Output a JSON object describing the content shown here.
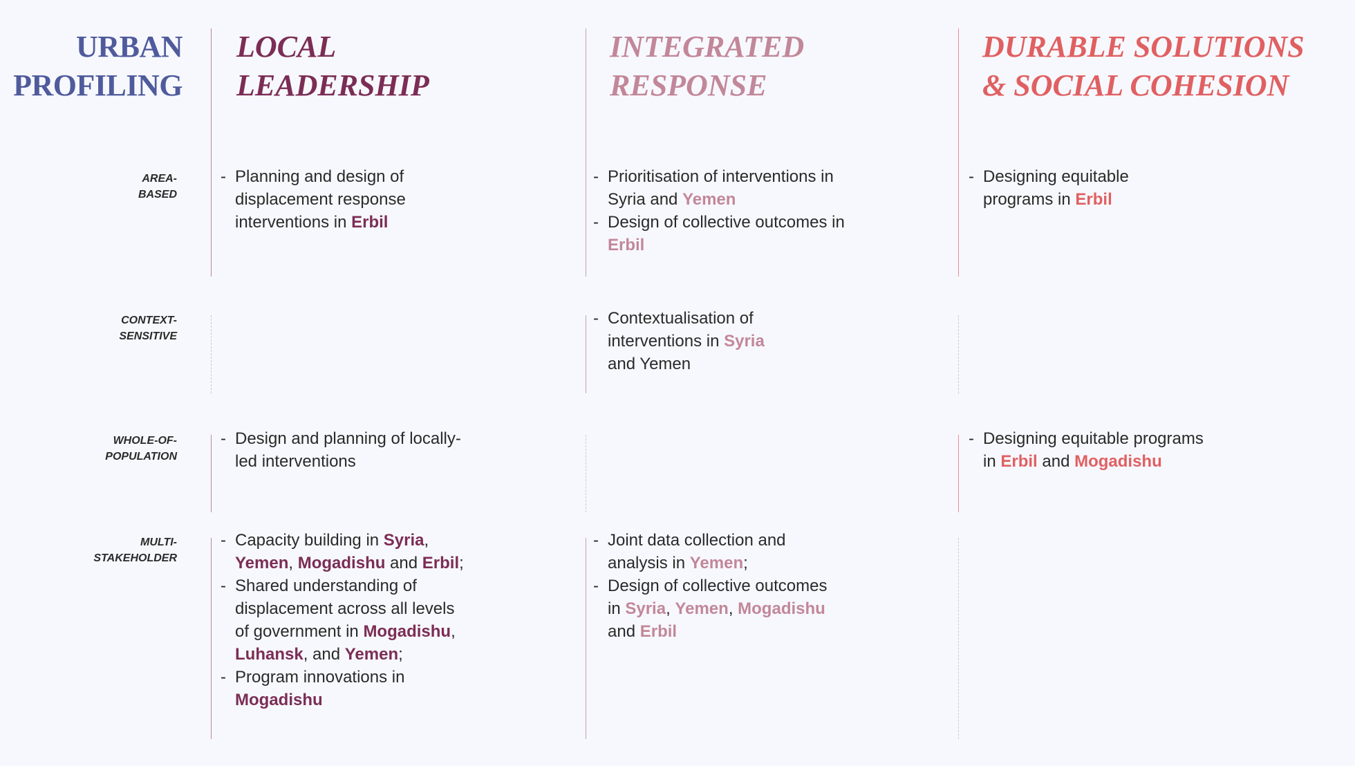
{
  "title": {
    "line1": "URBAN",
    "line2": "PROFILING",
    "color": "#4f5b9c"
  },
  "columns": [
    {
      "line1": "LOCAL",
      "line2": "LEADERSHIP",
      "color": "#7b2d55",
      "divider": "#b9859d"
    },
    {
      "line1": "INTEGRATED",
      "line2": "RESPONSE",
      "color": "#c28799",
      "divider": "#c9a0ad"
    },
    {
      "line1": "DURABLE SOLUTIONS",
      "line2": "& SOCIAL COHESION",
      "color": "#e06062",
      "divider": "#e88e90"
    }
  ],
  "rows": [
    {
      "label1": "AREA-",
      "label2": "BASED",
      "cells": [
        [
          [
            [
              {
                "t": "Planning and design of"
              }
            ],
            [
              {
                "t": "displacement response"
              }
            ],
            [
              {
                "t": "interventions in "
              },
              {
                "t": "Erbil",
                "h": 1
              }
            ]
          ]
        ],
        [
          [
            [
              {
                "t": "Prioritisation of interventions in"
              }
            ],
            [
              {
                "t": "Syria and "
              },
              {
                "t": "Yemen",
                "h": 1
              }
            ]
          ],
          [
            [
              {
                "t": "Design of collective outcomes in"
              }
            ],
            [
              {
                "t": "Erbil",
                "h": 1
              }
            ]
          ]
        ],
        [
          [
            [
              {
                "t": "Designing equitable"
              }
            ],
            [
              {
                "t": "programs in "
              },
              {
                "t": "Erbil",
                "h": 1
              }
            ]
          ]
        ]
      ]
    },
    {
      "label1": "CONTEXT-",
      "label2": "SENSITIVE",
      "cells": [
        [],
        [
          [
            [
              {
                "t": "Contextualisation of"
              }
            ],
            [
              {
                "t": "interventions in "
              },
              {
                "t": "Syria",
                "h": 1
              }
            ],
            [
              {
                "t": "and Yemen"
              }
            ]
          ]
        ],
        []
      ]
    },
    {
      "label1": "WHOLE-OF-",
      "label2": "POPULATION",
      "cells": [
        [
          [
            [
              {
                "t": "Design and planning of locally-"
              }
            ],
            [
              {
                "t": "led interventions"
              }
            ]
          ]
        ],
        [],
        [
          [
            [
              {
                "t": "Designing equitable programs"
              }
            ],
            [
              {
                "t": "in "
              },
              {
                "t": "Erbil",
                "h": 1
              },
              {
                "t": " and "
              },
              {
                "t": "Mogadishu",
                "h": 1
              }
            ]
          ]
        ]
      ]
    },
    {
      "label1": "MULTI-",
      "label2": "STAKEHOLDER",
      "cells": [
        [
          [
            [
              {
                "t": "Capacity building in "
              },
              {
                "t": "Syria",
                "h": 1
              },
              {
                "t": ","
              }
            ],
            [
              {
                "t": "Yemen",
                "h": 1
              },
              {
                "t": ", "
              },
              {
                "t": "Mogadishu",
                "h": 1
              },
              {
                "t": "  and "
              },
              {
                "t": "Erbil",
                "h": 1
              },
              {
                "t": ";"
              }
            ]
          ],
          [
            [
              {
                "t": "Shared understanding of"
              }
            ],
            [
              {
                "t": "displacement across all levels"
              }
            ],
            [
              {
                "t": "of government in "
              },
              {
                "t": "Mogadishu",
                "h": 1
              },
              {
                "t": ","
              }
            ],
            [
              {
                "t": "Luhansk",
                "h": 1
              },
              {
                "t": ", and "
              },
              {
                "t": "Yemen",
                "h": 1
              },
              {
                "t": ";"
              }
            ]
          ],
          [
            [
              {
                "t": "Program innovations in"
              }
            ],
            [
              {
                "t": "Mogadishu",
                "h": 1
              }
            ]
          ]
        ],
        [
          [
            [
              {
                "t": "Joint data collection and"
              }
            ],
            [
              {
                "t": "analysis in "
              },
              {
                "t": "Yemen",
                "h": 1
              },
              {
                "t": ";"
              }
            ]
          ],
          [
            [
              {
                "t": "Design of collective outcomes"
              }
            ],
            [
              {
                "t": "in "
              },
              {
                "t": "Syria",
                "h": 1
              },
              {
                "t": ", "
              },
              {
                "t": "Yemen",
                "h": 1
              },
              {
                "t": ", "
              },
              {
                "t": "Mogadishu",
                "h": 1
              }
            ],
            [
              {
                "t": "and "
              },
              {
                "t": "Erbil",
                "h": 1
              }
            ]
          ]
        ],
        []
      ]
    }
  ],
  "bullet_mark": "-"
}
